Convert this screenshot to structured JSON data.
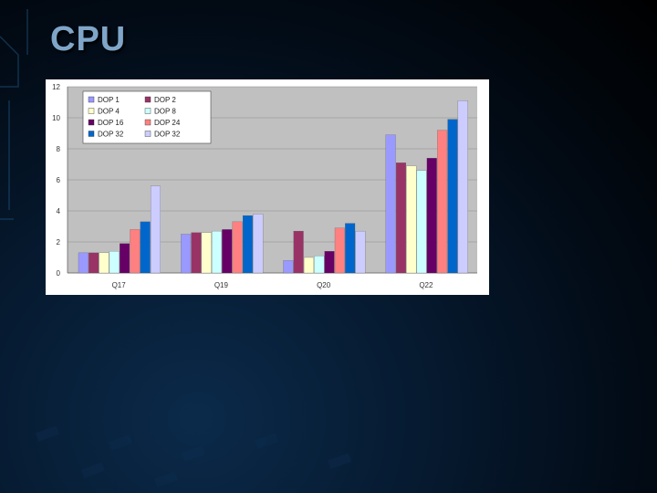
{
  "slide": {
    "title": "CPU"
  },
  "chart_data": {
    "type": "bar",
    "categories": [
      "Q17",
      "Q19",
      "Q20",
      "Q22"
    ],
    "series": [
      {
        "name": "DOP 1",
        "color": "#9999ff",
        "values": [
          1.3,
          2.5,
          0.8,
          8.9
        ]
      },
      {
        "name": "DOP 2",
        "color": "#993366",
        "values": [
          1.3,
          2.6,
          2.7,
          7.1
        ]
      },
      {
        "name": "DOP 4",
        "color": "#ffffcc",
        "values": [
          1.3,
          2.6,
          1.0,
          6.9
        ]
      },
      {
        "name": "DOP 8",
        "color": "#ccffff",
        "values": [
          1.4,
          2.7,
          1.1,
          6.6
        ]
      },
      {
        "name": "DOP 16",
        "color": "#660066",
        "values": [
          1.9,
          2.8,
          1.4,
          7.4
        ]
      },
      {
        "name": "DOP 24",
        "color": "#ff8080",
        "values": [
          2.8,
          3.3,
          2.9,
          9.2
        ]
      },
      {
        "name": "DOP 32",
        "color": "#0066cc",
        "values": [
          3.3,
          3.7,
          3.2,
          9.9
        ]
      },
      {
        "name": "DOP 32",
        "color": "#ccccff",
        "values": [
          5.6,
          3.8,
          2.7,
          11.1
        ]
      }
    ],
    "ylim": [
      0,
      12
    ],
    "yticks": [
      "0",
      "2",
      "4",
      "6",
      "8",
      "10",
      "12"
    ],
    "grid": true,
    "legend_position": "top-left"
  }
}
